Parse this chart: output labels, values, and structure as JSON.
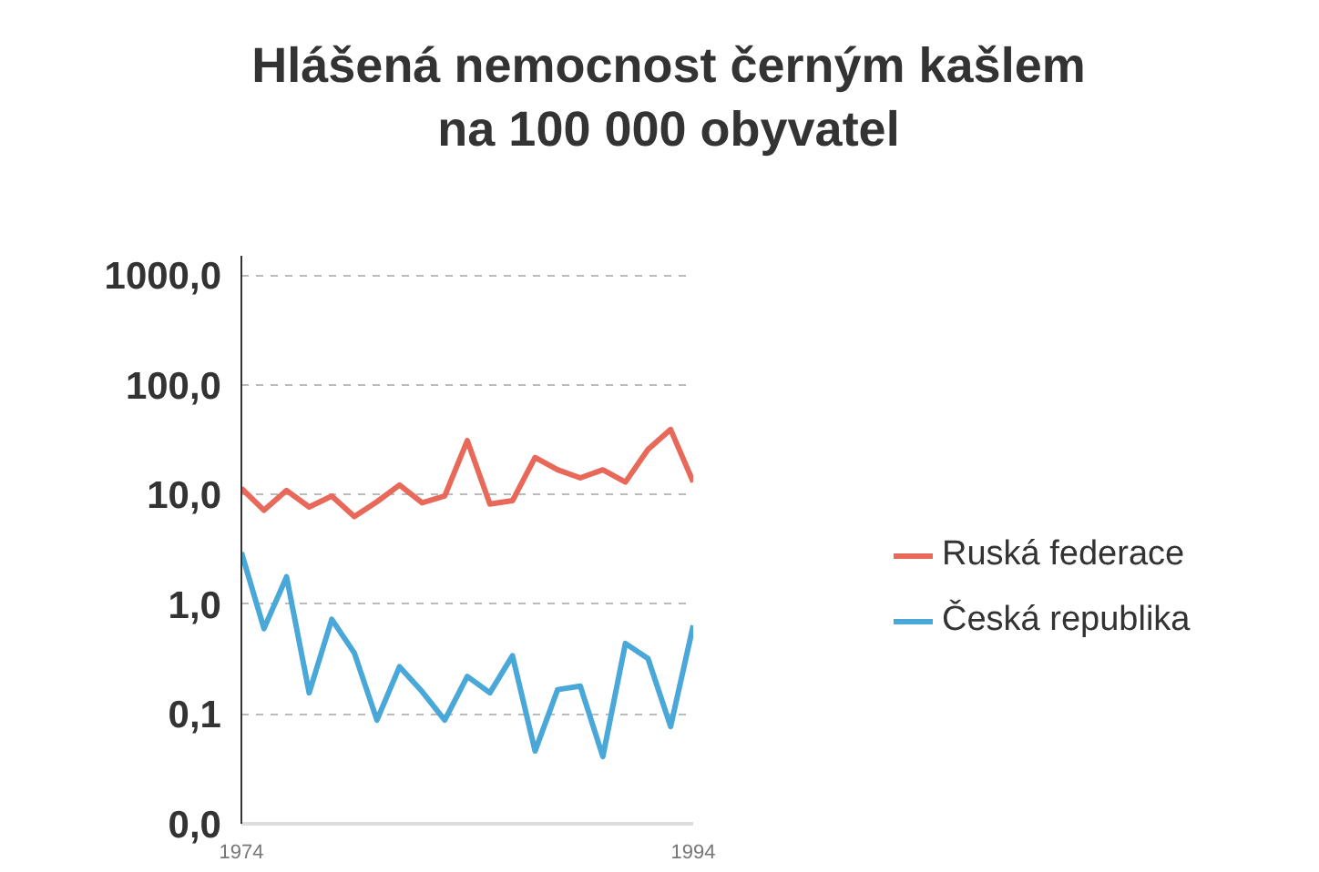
{
  "chart_data": {
    "type": "line",
    "title": "Hlášená nemocnost černým kašlem\nna 100 000 obyvatel",
    "x": [
      1974,
      1975,
      1976,
      1977,
      1978,
      1979,
      1980,
      1981,
      1982,
      1983,
      1984,
      1985,
      1986,
      1987,
      1988,
      1989,
      1990,
      1991,
      1992,
      1993,
      1994
    ],
    "series": [
      {
        "name": "Ruská federace",
        "color": "#e8695a",
        "values": [
          11.4,
          7.2,
          10.9,
          7.7,
          9.7,
          6.3,
          8.6,
          12.2,
          8.4,
          9.7,
          31,
          8.2,
          8.8,
          21.8,
          16.8,
          14.2,
          16.8,
          13,
          25.8,
          39.2,
          13
        ]
      },
      {
        "name": "Česká republika",
        "color": "#4aa8d8",
        "values": [
          2.97,
          0.6,
          1.78,
          0.156,
          0.73,
          0.36,
          0.088,
          0.27,
          0.16,
          0.088,
          0.22,
          0.156,
          0.34,
          0.046,
          0.167,
          0.18,
          0.041,
          0.44,
          0.32,
          0.077,
          0.64
        ]
      }
    ],
    "log": "y",
    "ylim": [
      0.01,
      1500
    ],
    "yticks": [
      {
        "value": 0.01,
        "label": "0,0"
      },
      {
        "value": 0.1,
        "label": "0,1"
      },
      {
        "value": 1,
        "label": "1,0"
      },
      {
        "value": 10,
        "label": "10,0"
      },
      {
        "value": 100,
        "label": "100,0"
      },
      {
        "value": 1000,
        "label": "1000,0"
      }
    ],
    "xlim": [
      1974,
      1994
    ],
    "xticks": [
      1974,
      1994
    ],
    "grid": "y",
    "legend": "right",
    "marker": "none",
    "line_style": "solid"
  }
}
